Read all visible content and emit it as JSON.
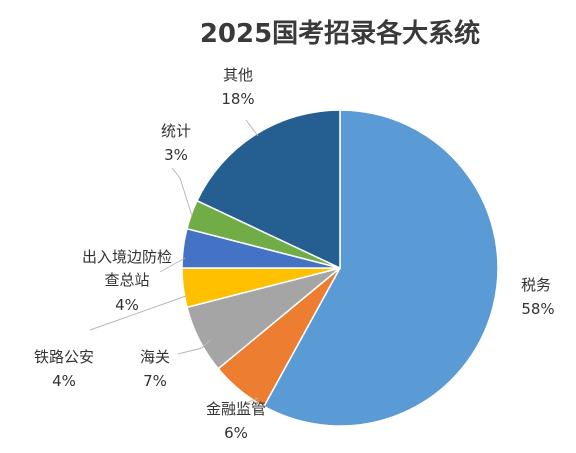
{
  "chart_data": {
    "type": "pie",
    "title": "2025国考招录各大系统",
    "slices": [
      {
        "name": "税务",
        "value": 58,
        "label": "58%",
        "color": "#5b9bd5"
      },
      {
        "name": "金融监管",
        "value": 6,
        "label": "6%",
        "color": "#ed7d31"
      },
      {
        "name": "海关",
        "value": 7,
        "label": "7%",
        "color": "#a5a5a5"
      },
      {
        "name": "铁路公安",
        "value": 4,
        "label": "4%",
        "color": "#ffc000"
      },
      {
        "name": "出入境边防检查总站",
        "value": 4,
        "label": "4%",
        "color": "#4472c4"
      },
      {
        "name": "统计",
        "value": 3,
        "label": "3%",
        "color": "#70ad47"
      },
      {
        "name": "其他",
        "value": 18,
        "label": "18%",
        "color": "#255e91"
      }
    ],
    "start_angle_deg": 0,
    "direction": "clockwise",
    "legend": "none",
    "data_labels": "outside-with-leaders"
  }
}
